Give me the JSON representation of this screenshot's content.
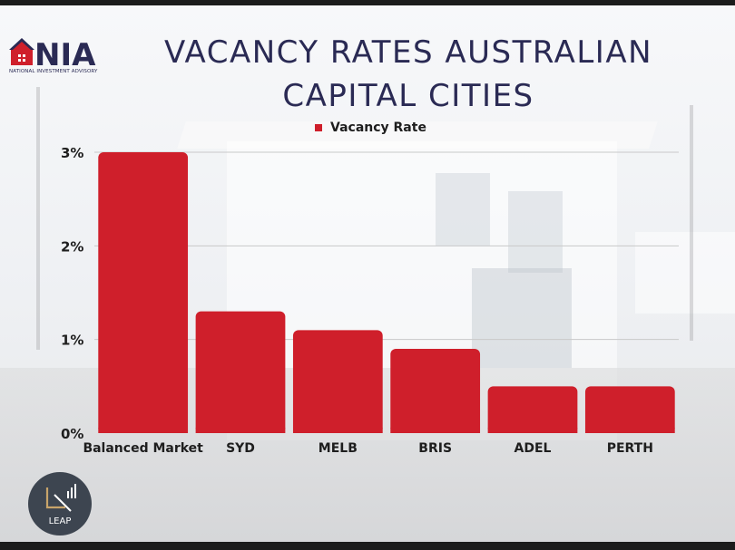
{
  "brand": {
    "logo_text": "NATIONAL INVESTMENT ADVISORY",
    "logo_letters": "NIA",
    "corner_logo_text": "LEAP"
  },
  "title": "VACANCY RATES AUSTRALIAN CAPITAL CITIES",
  "colors": {
    "bar": "#cf1f2b",
    "title": "#2a2a54",
    "text": "#1e1e1e"
  },
  "chart_data": {
    "type": "bar",
    "title": "VACANCY RATES AUSTRALIAN CAPITAL CITIES",
    "categories": [
      "Balanced Market",
      "SYD",
      "MELB",
      "BRIS",
      "ADEL",
      "PERTH"
    ],
    "series": [
      {
        "name": "Vacancy Rate",
        "values": [
          3.0,
          1.3,
          1.1,
          0.9,
          0.5,
          0.5
        ]
      }
    ],
    "ylim": [
      0,
      3
    ],
    "yticks": [
      "0%",
      "1%",
      "2%",
      "3%"
    ],
    "xlabel": "",
    "ylabel": "",
    "grid": true,
    "legend_position": "top-center"
  }
}
